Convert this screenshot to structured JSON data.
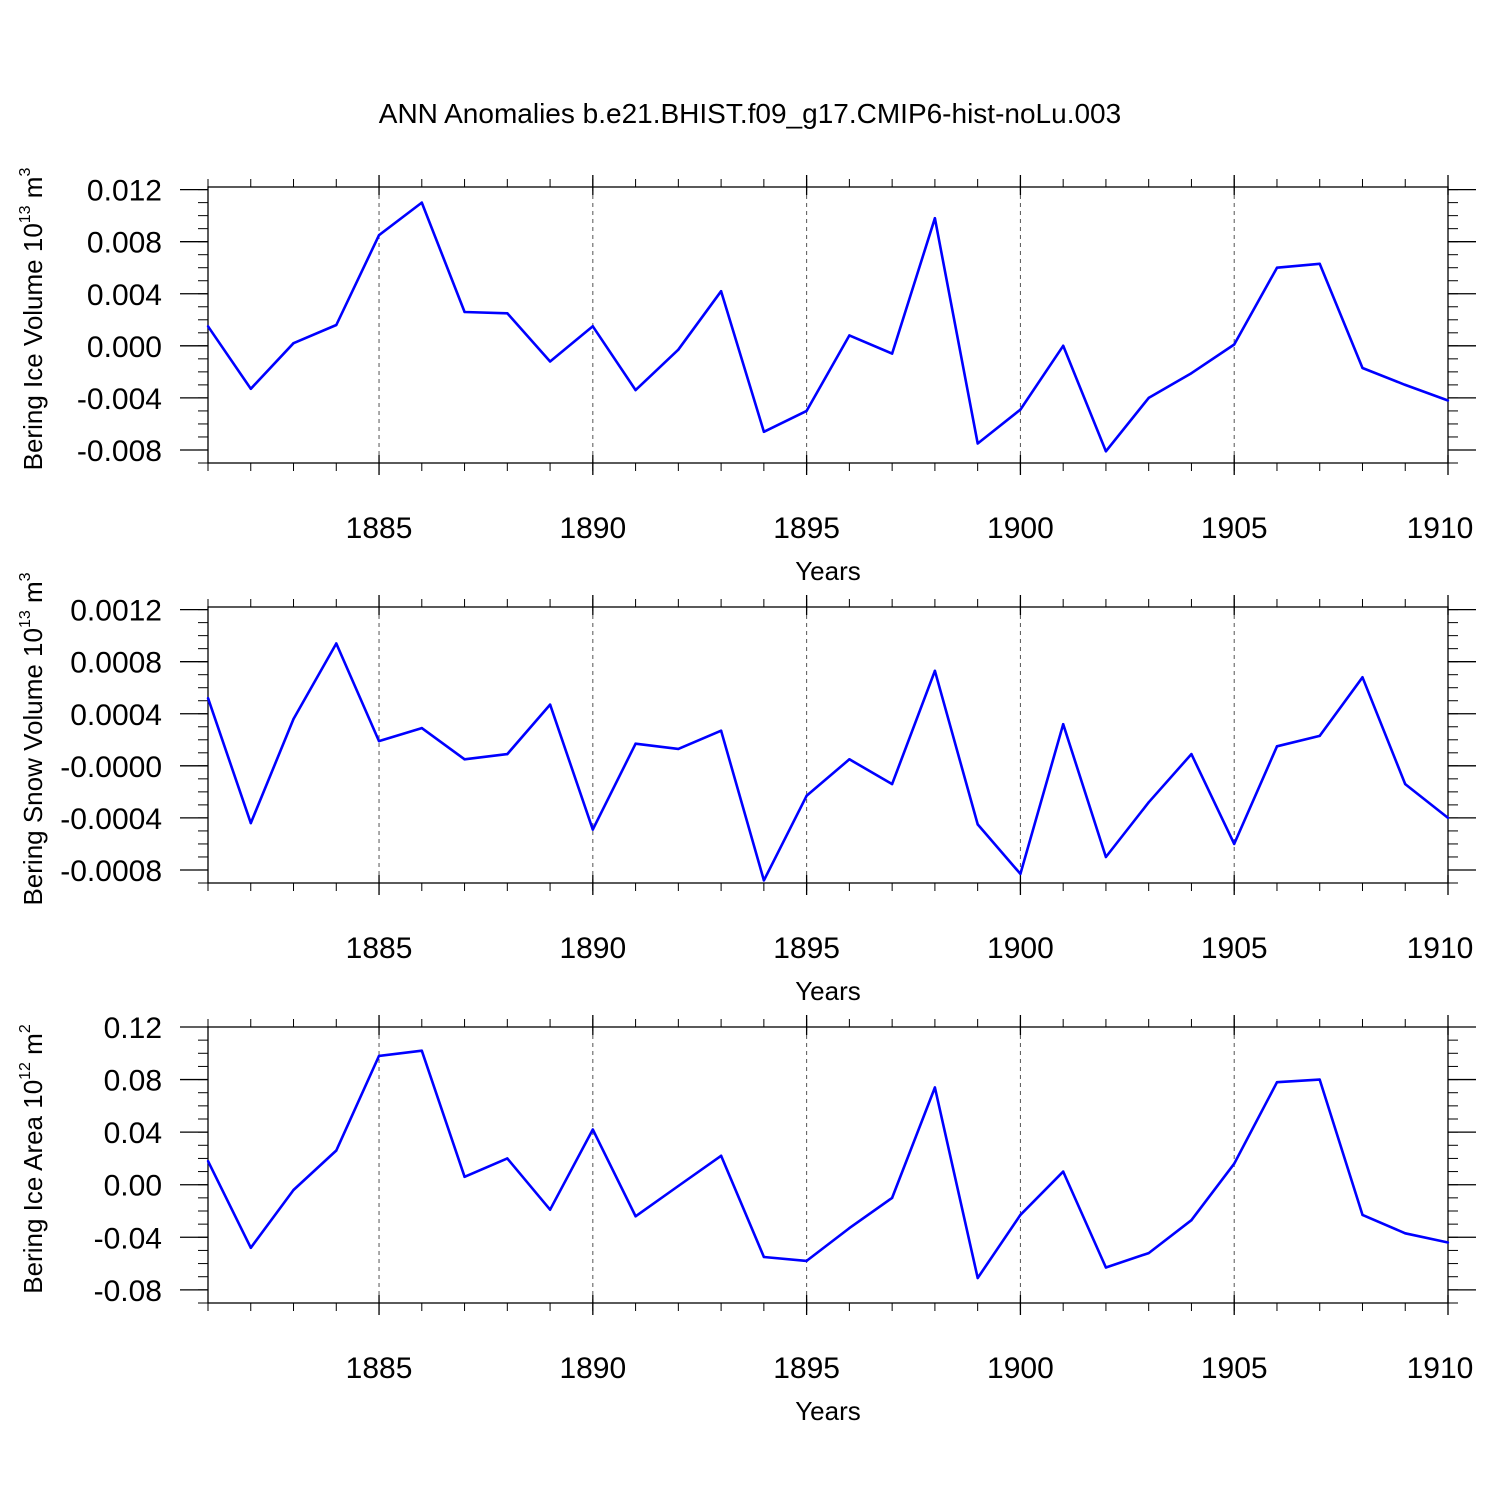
{
  "title": "ANN Anomalies b.e21.BHIST.f09_g17.CMIP6-hist-noLu.003",
  "colors": {
    "line": "#0000ff",
    "axis": "#000000",
    "grid": "#555555",
    "background": "#ffffff"
  },
  "chart_data": [
    {
      "type": "line",
      "ylabel": "Bering Ice Volume 10",
      "ylabel_exp": "13",
      "ylabel_unit": " m",
      "ylabel_unit_exp": "3",
      "xlabel": "Years",
      "xlim": [
        1881,
        1910
      ],
      "ylim": [
        -0.009,
        0.0122
      ],
      "yticks": [
        -0.008,
        -0.004,
        0.0,
        0.004,
        0.008,
        0.012
      ],
      "ytick_labels": [
        "-0.008",
        "-0.004",
        "0.000",
        "0.004",
        "0.008",
        "0.012"
      ],
      "yminor_step": 0.001,
      "xticks": [
        1885,
        1890,
        1895,
        1900,
        1905,
        1910
      ],
      "xtick_labels": [
        "1885",
        "1890",
        "1895",
        "1900",
        "1905",
        "1910"
      ],
      "x": [
        1881,
        1882,
        1883,
        1884,
        1885,
        1886,
        1887,
        1888,
        1889,
        1890,
        1891,
        1892,
        1893,
        1894,
        1895,
        1896,
        1897,
        1898,
        1899,
        1900,
        1901,
        1902,
        1903,
        1904,
        1905,
        1906,
        1907,
        1908,
        1909,
        1910
      ],
      "series": [
        {
          "name": "Bering Ice Volume",
          "values": [
            0.0015,
            -0.0033,
            0.0002,
            0.0016,
            0.0085,
            0.011,
            0.0026,
            0.0025,
            -0.0012,
            0.0015,
            -0.0034,
            -0.0003,
            0.0042,
            -0.0066,
            -0.005,
            0.0008,
            -0.0006,
            0.0098,
            -0.0075,
            -0.0049,
            0.0,
            -0.0081,
            -0.004,
            -0.0021,
            0.0001,
            0.006,
            0.0063,
            -0.0017,
            -0.003,
            -0.0042
          ]
        }
      ]
    },
    {
      "type": "line",
      "ylabel": "Bering Snow Volume 10",
      "ylabel_exp": "13",
      "ylabel_unit": " m",
      "ylabel_unit_exp": "3",
      "xlabel": "Years",
      "xlim": [
        1881,
        1910
      ],
      "ylim": [
        -0.0009,
        0.00122
      ],
      "yticks": [
        -0.0008,
        -0.0004,
        0.0,
        0.0004,
        0.0008,
        0.0012
      ],
      "ytick_labels": [
        "-0.0008",
        "-0.0004",
        "-0.0000",
        "0.0004",
        "0.0008",
        "0.0012"
      ],
      "yminor_step": 0.0001,
      "xticks": [
        1885,
        1890,
        1895,
        1900,
        1905,
        1910
      ],
      "xtick_labels": [
        "1885",
        "1890",
        "1895",
        "1900",
        "1905",
        "1910"
      ],
      "x": [
        1881,
        1882,
        1883,
        1884,
        1885,
        1886,
        1887,
        1888,
        1889,
        1890,
        1891,
        1892,
        1893,
        1894,
        1895,
        1896,
        1897,
        1898,
        1899,
        1900,
        1901,
        1902,
        1903,
        1904,
        1905,
        1906,
        1907,
        1908,
        1909,
        1910
      ],
      "series": [
        {
          "name": "Bering Snow Volume",
          "values": [
            0.00052,
            -0.00044,
            0.00036,
            0.00094,
            0.00019,
            0.00029,
            5e-05,
            9e-05,
            0.00047,
            -0.00049,
            0.00017,
            0.00013,
            0.00027,
            -0.00088,
            -0.00023,
            5e-05,
            -0.00014,
            0.00073,
            -0.00045,
            -0.00083,
            0.00032,
            -0.0007,
            -0.00028,
            9e-05,
            -0.0006,
            0.00015,
            0.00023,
            0.00068,
            -0.00014,
            -0.0004
          ]
        }
      ]
    },
    {
      "type": "line",
      "ylabel": "Bering Ice Area 10",
      "ylabel_exp": "12",
      "ylabel_unit": " m",
      "ylabel_unit_exp": "2",
      "xlabel": "Years",
      "xlim": [
        1881,
        1910
      ],
      "ylim": [
        -0.09,
        0.12
      ],
      "yticks": [
        -0.08,
        -0.04,
        0.0,
        0.04,
        0.08,
        0.12
      ],
      "ytick_labels": [
        "-0.08",
        "-0.04",
        "0.00",
        "0.04",
        "0.08",
        "0.12"
      ],
      "yminor_step": 0.01,
      "xticks": [
        1885,
        1890,
        1895,
        1900,
        1905,
        1910
      ],
      "xtick_labels": [
        "1885",
        "1890",
        "1895",
        "1900",
        "1905",
        "1910"
      ],
      "x": [
        1881,
        1882,
        1883,
        1884,
        1885,
        1886,
        1887,
        1888,
        1889,
        1890,
        1891,
        1892,
        1893,
        1894,
        1895,
        1896,
        1897,
        1898,
        1899,
        1900,
        1901,
        1902,
        1903,
        1904,
        1905,
        1906,
        1907,
        1908,
        1909,
        1910
      ],
      "series": [
        {
          "name": "Bering Ice Area",
          "values": [
            0.018,
            -0.048,
            -0.004,
            0.026,
            0.098,
            0.102,
            0.006,
            0.02,
            -0.019,
            0.042,
            -0.024,
            -0.001,
            0.022,
            -0.055,
            -0.058,
            -0.033,
            -0.01,
            0.074,
            -0.071,
            -0.023,
            0.01,
            -0.063,
            -0.052,
            -0.027,
            0.016,
            0.078,
            0.08,
            -0.023,
            -0.037,
            -0.044
          ]
        }
      ]
    }
  ]
}
